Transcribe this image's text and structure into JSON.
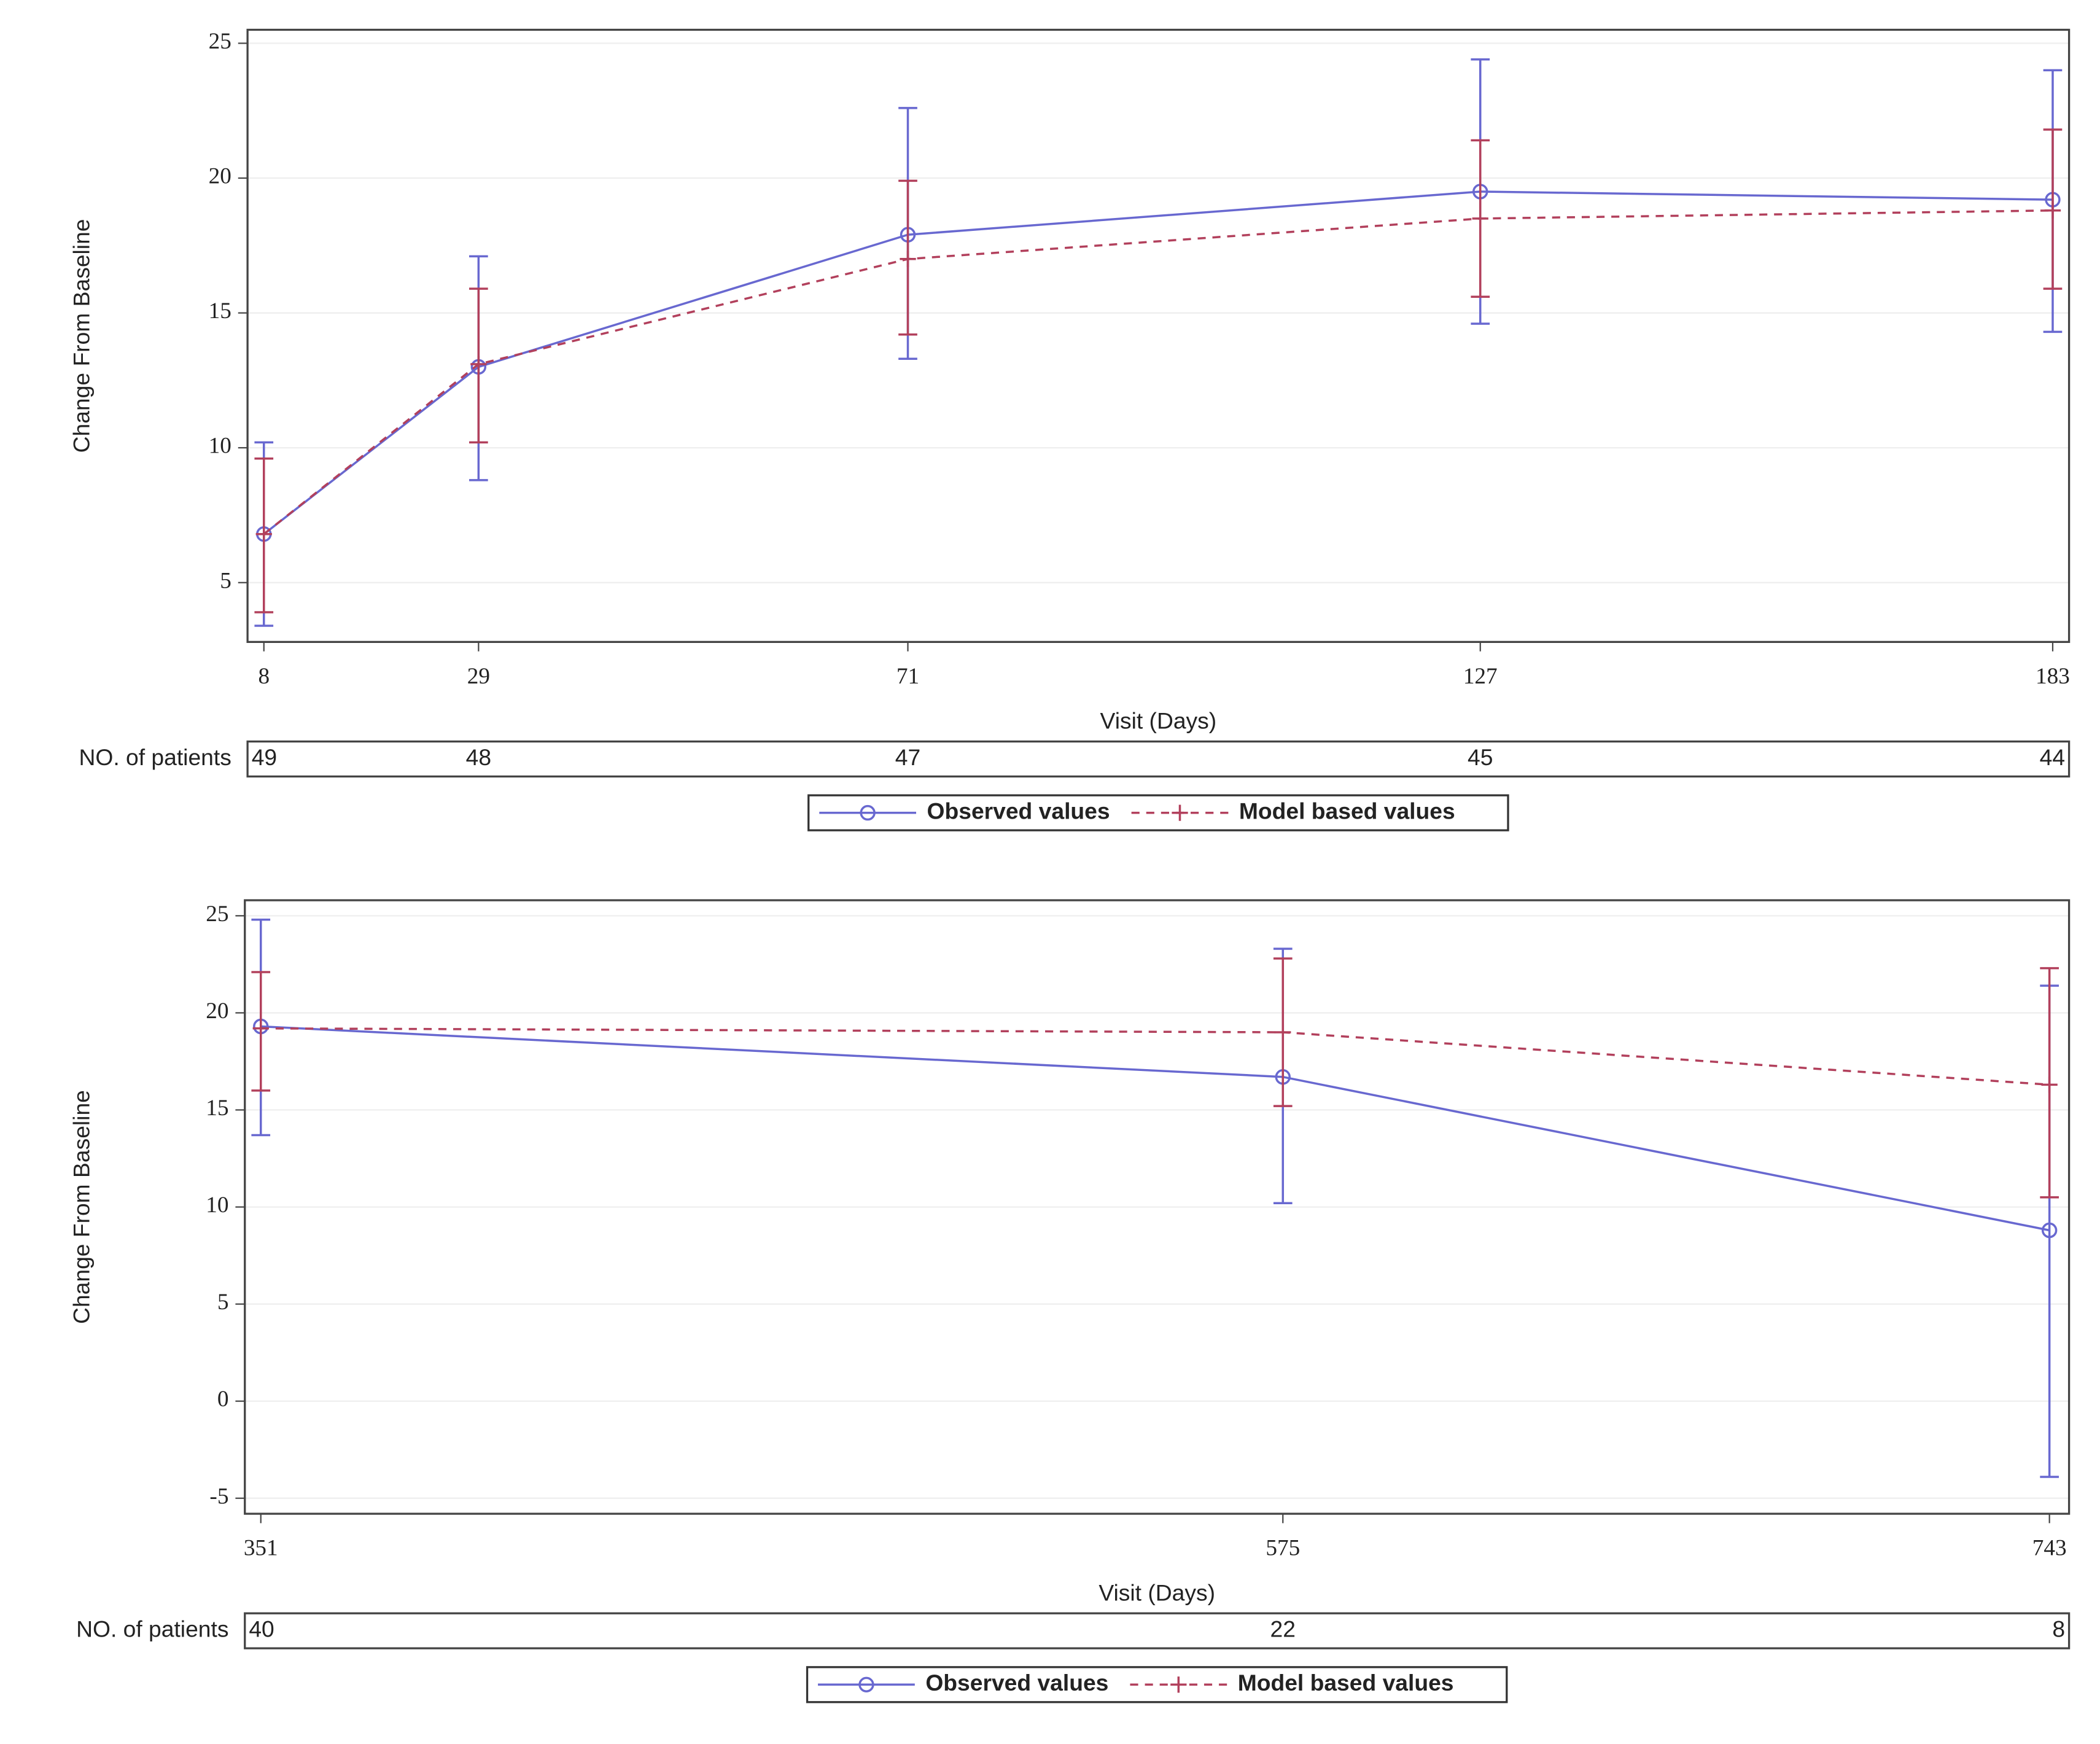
{
  "chart_data": [
    {
      "type": "line",
      "x_label": "Visit (Days)",
      "y_label": "Change From Baseline",
      "x": [
        8,
        29,
        71,
        127,
        183
      ],
      "xlim": [
        6.4,
        184.6
      ],
      "xticks": [
        8,
        29,
        71,
        127,
        183
      ],
      "ylim": [
        2.8,
        25.5
      ],
      "yticks": [
        5,
        10,
        15,
        20,
        25
      ],
      "grid": true,
      "series": [
        {
          "name": "Observed values",
          "color": "#6868d0",
          "marker": "circle",
          "dash": false,
          "values": [
            6.8,
            13.0,
            17.9,
            19.5,
            19.2
          ],
          "lower": [
            3.4,
            8.8,
            13.3,
            14.6,
            14.3
          ],
          "upper": [
            10.2,
            17.1,
            22.6,
            24.4,
            24.0
          ]
        },
        {
          "name": "Model based values",
          "color": "#b2405c",
          "marker": "plus",
          "dash": true,
          "values": [
            6.8,
            13.1,
            17.0,
            18.5,
            18.8
          ],
          "lower": [
            3.9,
            10.2,
            14.2,
            15.6,
            15.9
          ],
          "upper": [
            9.6,
            15.9,
            19.9,
            21.4,
            21.8
          ]
        }
      ],
      "at_risk_label": "NO. of patients",
      "at_risk": [
        49,
        48,
        47,
        45,
        44
      ]
    },
    {
      "type": "line",
      "x_label": "Visit (Days)",
      "y_label": "Change From Baseline",
      "x": [
        351,
        575,
        743
      ],
      "xlim": [
        347.5,
        747.3
      ],
      "xticks": [
        351,
        575,
        743
      ],
      "ylim": [
        -5.8,
        25.8
      ],
      "yticks": [
        -5,
        0,
        5,
        10,
        15,
        20,
        25
      ],
      "grid": true,
      "series": [
        {
          "name": "Observed values",
          "color": "#6868d0",
          "marker": "circle",
          "dash": false,
          "values": [
            19.3,
            16.7,
            8.8
          ],
          "lower": [
            13.7,
            10.2,
            -3.9
          ],
          "upper": [
            24.8,
            23.3,
            21.4
          ]
        },
        {
          "name": "Model based values",
          "color": "#b2405c",
          "marker": "plus",
          "dash": true,
          "values": [
            19.2,
            19.0,
            16.3
          ],
          "lower": [
            16.0,
            15.2,
            10.5
          ],
          "upper": [
            22.1,
            22.8,
            22.3
          ]
        }
      ],
      "at_risk_label": "NO. of patients",
      "at_risk": [
        40,
        22,
        8
      ]
    }
  ]
}
